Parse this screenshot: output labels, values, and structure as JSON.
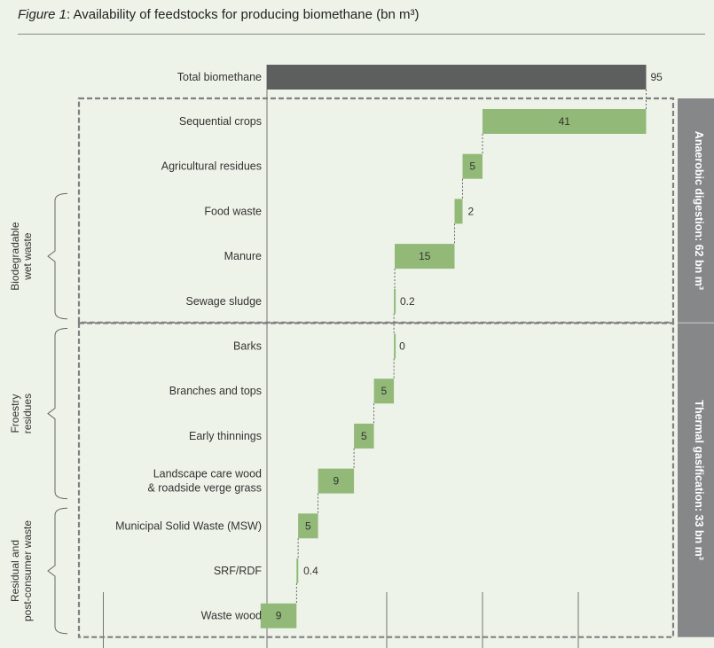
{
  "title": {
    "figure_label": "Figure 1",
    "text": ": Availability of feedstocks for producing biomethane (bn m³)"
  },
  "chart_data": {
    "type": "bar",
    "subtype": "waterfall",
    "orientation": "horizontal",
    "xlim": [
      0,
      100
    ],
    "total": {
      "category": "Total biomethane",
      "value": 95,
      "label": "95",
      "color": "#5d5f5f"
    },
    "categories": [
      "Sequential crops",
      "Agricultural residues",
      "Food waste",
      "Manure",
      "Sewage sludge",
      "Barks",
      "Branches and tops",
      "Early thinnings",
      "Landscape care wood & roadside verge grass",
      "Municipal Solid Waste (MSW)",
      "SRF/RDF",
      "Waste wood"
    ],
    "category_lines": [
      [
        "Sequential crops"
      ],
      [
        "Agricultural residues"
      ],
      [
        "Food waste"
      ],
      [
        "Manure"
      ],
      [
        "Sewage sludge"
      ],
      [
        "Barks"
      ],
      [
        "Branches and tops"
      ],
      [
        "Early thinnings"
      ],
      [
        "Landscape care wood",
        "& roadside verge grass"
      ],
      [
        "Municipal Solid Waste (MSW)"
      ],
      [
        "SRF/RDF"
      ],
      [
        "Waste wood"
      ]
    ],
    "values": [
      41,
      5,
      2,
      15,
      0.2,
      0,
      5,
      5,
      9,
      5,
      0.4,
      9
    ],
    "value_labels": [
      "41",
      "5",
      "2",
      "15",
      "0.2",
      "0",
      "5",
      "5",
      "9",
      "5",
      "0.4",
      "9"
    ],
    "bar_color": "#92b978",
    "groups": [
      {
        "label_lines": [
          "Biodegradable",
          "wet waste"
        ],
        "from": 2,
        "to": 4
      },
      {
        "label_lines": [
          "Froestry",
          "residues"
        ],
        "from": 5,
        "to": 8
      },
      {
        "label_lines": [
          "Residual and",
          "post-consumer waste"
        ],
        "from": 9,
        "to": 11
      }
    ],
    "segments": [
      {
        "label": "Anaerobic digestion: 62 bn m³",
        "from": 0,
        "to": 4
      },
      {
        "label": "Thermal gasification: 33 bn m³",
        "from": 5,
        "to": 11
      }
    ],
    "segment_color": "#858789",
    "grid": "vertical"
  }
}
